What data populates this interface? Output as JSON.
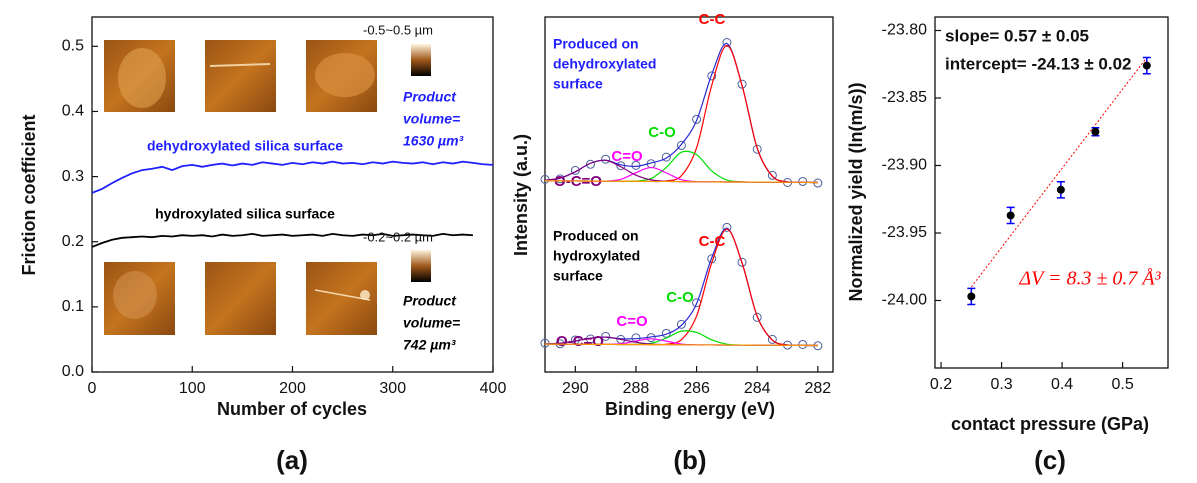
{
  "chart_data": [
    {
      "type": "line",
      "panel_label": "(a)",
      "xlabel": "Number of cycles",
      "ylabel": "Friction coefficient",
      "xlim": [
        0,
        400
      ],
      "ylim": [
        0,
        0.545
      ],
      "xticks": [
        0,
        100,
        200,
        300,
        400
      ],
      "yticks": [
        {
          "value": 0,
          "label": "0.0"
        },
        0.1,
        0.2,
        0.3,
        0.4,
        0.5
      ],
      "series": [
        {
          "name": "dehydroxylated silica surface",
          "color": "#1f1fff",
          "x": [
            0,
            10,
            20,
            30,
            40,
            50,
            60,
            70,
            80,
            90,
            100,
            110,
            120,
            130,
            140,
            150,
            160,
            170,
            180,
            190,
            200,
            210,
            220,
            230,
            240,
            250,
            260,
            270,
            280,
            290,
            300,
            310,
            320,
            330,
            340,
            350,
            360,
            370,
            380,
            390,
            400
          ],
          "values": [
            0.275,
            0.281,
            0.29,
            0.298,
            0.305,
            0.31,
            0.312,
            0.315,
            0.31,
            0.316,
            0.318,
            0.315,
            0.318,
            0.32,
            0.317,
            0.32,
            0.318,
            0.322,
            0.32,
            0.318,
            0.321,
            0.319,
            0.322,
            0.32,
            0.323,
            0.32,
            0.321,
            0.319,
            0.322,
            0.32,
            0.323,
            0.321,
            0.32,
            0.322,
            0.319,
            0.322,
            0.32,
            0.323,
            0.321,
            0.319,
            0.318
          ]
        },
        {
          "name": "hydroxylated silica surface",
          "color": "#000000",
          "x": [
            0,
            10,
            20,
            30,
            40,
            50,
            60,
            70,
            80,
            90,
            100,
            110,
            120,
            130,
            140,
            150,
            160,
            170,
            180,
            190,
            200,
            210,
            220,
            230,
            240,
            250,
            260,
            270,
            280,
            290,
            300,
            310,
            320,
            330,
            340,
            350,
            360,
            370,
            380
          ],
          "values": [
            0.192,
            0.198,
            0.203,
            0.206,
            0.207,
            0.208,
            0.207,
            0.209,
            0.208,
            0.21,
            0.209,
            0.21,
            0.208,
            0.211,
            0.209,
            0.21,
            0.212,
            0.209,
            0.21,
            0.211,
            0.209,
            0.21,
            0.211,
            0.209,
            0.212,
            0.21,
            0.209,
            0.211,
            0.21,
            0.212,
            0.209,
            0.21,
            0.211,
            0.21,
            0.209,
            0.212,
            0.21,
            0.211,
            0.21
          ]
        }
      ],
      "annotations": {
        "scale_top": "-0.5~0.5 µm",
        "volume_top": [
          "Product",
          "volume=",
          "1630 µm³"
        ],
        "scale_bottom": "-0.2~0.2 µm",
        "volume_bottom": [
          "Product",
          "volume=",
          "742 µm³"
        ]
      }
    },
    {
      "type": "line",
      "ylabel": "Intensity (a.u.)",
      "xlim": [
        291,
        281.5
      ],
      "ylim": [
        0,
        100
      ],
      "annotation": [
        "Produced on",
        "dehydroxylated",
        "surface"
      ],
      "annotation_color": "#1f1fff",
      "x": [
        291,
        290.5,
        290,
        289.5,
        289,
        288.5,
        288,
        287.5,
        287,
        286.5,
        286,
        285.5,
        285,
        284.5,
        284,
        283.5,
        283,
        282.5,
        282
      ],
      "series": [
        {
          "color": "#4a5f9a",
          "marker": "circle",
          "values": [
            11.8,
            12.1,
            16.9,
            20.4,
            23.3,
            19.6,
            19.8,
            20.7,
            24.5,
            31.2,
            46.1,
            70.9,
            90.0,
            66.2,
            29.0,
            14.1,
            10.0,
            10.6,
            9.7
          ]
        },
        {
          "color": "#2b2bd0",
          "values": [
            11.3,
            12.5,
            16.1,
            21.0,
            22.7,
            20.1,
            19.2,
            21.2,
            23.9,
            31.8,
            45.4,
            71.7,
            89.4,
            65.5,
            29.6,
            13.6,
            10.4,
            10.1,
            10
          ]
        },
        {
          "name": "C-C",
          "color": "#ff0000",
          "values": [
            11,
            10.9,
            10.9,
            10.8,
            10.8,
            10.7,
            10.7,
            10.6,
            10.9,
            13.9,
            29.8,
            65.5,
            88.3,
            65.4,
            29.6,
            13.6,
            10.4,
            10.1,
            10
          ]
        },
        {
          "name": "C-O",
          "color": "#00dd00",
          "values": [
            11,
            10.9,
            10.9,
            10.8,
            10.8,
            10.7,
            10.8,
            12.3,
            18.6,
            27.3,
            25.9,
            16.6,
            11.4,
            10.4,
            10.2,
            10.2,
            10.1,
            10.1,
            10
          ]
        },
        {
          "name": "C=O",
          "color": "#ff00ff",
          "values": [
            11,
            10.9,
            10.9,
            10.8,
            10.8,
            11.8,
            15.6,
            18.6,
            15.5,
            11.6,
            10.5,
            10.4,
            10.3,
            10.3,
            10.2,
            10.2,
            10.1,
            10.1,
            10
          ]
        },
        {
          "name": "O-C=O",
          "color": "#800080",
          "values": [
            11.3,
            12.5,
            16.1,
            21.0,
            22.7,
            19.0,
            14.2,
            11.5,
            10.7,
            10.5,
            10.4,
            10.4,
            10.3,
            10.3,
            10.2,
            10.2,
            10.1,
            10.1,
            10
          ]
        },
        {
          "color": "#ff9900",
          "values": [
            11,
            10.9,
            10.9,
            10.8,
            10.8,
            10.7,
            10.7,
            10.6,
            10.6,
            10.5,
            10.4,
            10.4,
            10.3,
            10.3,
            10.2,
            10.2,
            10.1,
            10.1,
            10
          ]
        }
      ]
    },
    {
      "type": "line",
      "panel_label": "(b)",
      "xlabel": "Binding energy (eV)",
      "xlim": [
        291,
        281.5
      ],
      "ylim": [
        0,
        100
      ],
      "xticks": [
        290,
        288,
        286,
        284,
        282
      ],
      "annotation": [
        "Produced on",
        "hydroxylated",
        "surface"
      ],
      "annotation_color": "#000000",
      "x": [
        291,
        290.5,
        290,
        289.5,
        289,
        288.5,
        288,
        287.5,
        287,
        286.5,
        286,
        285.5,
        285,
        284.5,
        284,
        283.5,
        283,
        282.5,
        282
      ],
      "series": [
        {
          "color": "#4a5f9a",
          "marker": "circle",
          "values": [
            11.6,
            11.2,
            13.8,
            14.5,
            16.3,
            14.2,
            15.3,
            15.4,
            18.4,
            24.6,
            39.5,
            69.8,
            91.5,
            67.4,
            29.4,
            14.2,
            10.3,
            10.7,
            9.8
          ]
        },
        {
          "color": "#2b2bd0",
          "values": [
            11.1,
            11.6,
            13.1,
            15.0,
            15.8,
            14.7,
            14.7,
            15.9,
            17.8,
            23.9,
            38.9,
            70.5,
            90.9,
            66.9,
            30.1,
            13.7,
            10.4,
            10.1,
            10
          ]
        },
        {
          "name": "C-C",
          "color": "#ff0000",
          "values": [
            11,
            10.9,
            10.9,
            10.8,
            10.8,
            10.7,
            10.7,
            10.6,
            10.9,
            14.0,
            30.3,
            67.0,
            90.3,
            66.9,
            30.1,
            13.7,
            10.4,
            10.1,
            10
          ]
        },
        {
          "name": "C-O",
          "color": "#00dd00",
          "values": [
            11,
            10.9,
            10.9,
            10.8,
            10.8,
            10.7,
            10.8,
            11.5,
            15.1,
            19.9,
            19.0,
            13.9,
            10.9,
            10.3,
            10.2,
            10.2,
            10.1,
            10.1,
            10
          ]
        },
        {
          "name": "C=O",
          "color": "#ff00ff",
          "values": [
            11,
            10.9,
            10.9,
            10.8,
            10.8,
            11.2,
            13.1,
            14.6,
            13.0,
            11.0,
            10.4,
            10.4,
            10.3,
            10.3,
            10.2,
            10.2,
            10.1,
            10.1,
            10
          ]
        },
        {
          "name": "O-C=O",
          "color": "#800080",
          "values": [
            11.1,
            11.6,
            13.1,
            15.0,
            15.8,
            14.2,
            12.2,
            11.0,
            10.6,
            10.5,
            10.4,
            10.4,
            10.3,
            10.3,
            10.2,
            10.2,
            10.1,
            10.1,
            10
          ]
        },
        {
          "color": "#ff9900",
          "values": [
            11,
            10.9,
            10.9,
            10.8,
            10.8,
            10.7,
            10.7,
            10.6,
            10.6,
            10.5,
            10.4,
            10.4,
            10.3,
            10.3,
            10.2,
            10.2,
            10.1,
            10.1,
            10
          ]
        }
      ]
    },
    {
      "type": "scatter",
      "panel_label": "(c)",
      "xlabel": "contact pressure (GPa)",
      "ylabel": "Normalized yield (ln(m/s))",
      "xlim": [
        0.19,
        0.575
      ],
      "ylim": [
        -24.05,
        -23.79
      ],
      "xticks": [
        0.2,
        0.3,
        0.4,
        0.5
      ],
      "yticks": [
        {
          "value": -23.8,
          "label": "-23.80"
        },
        -23.85,
        {
          "value": -23.9,
          "label": "-23.90"
        },
        -23.95,
        {
          "value": -24,
          "label": "-24.00"
        }
      ],
      "x": [
        0.25,
        0.315,
        0.398,
        0.455,
        0.54
      ],
      "values": [
        -23.997,
        -23.937,
        -23.918,
        -23.875,
        -23.826
      ],
      "errors": [
        0.006,
        0.006,
        0.006,
        0.003,
        0.006
      ],
      "color": "#000000",
      "error_color": "#0000ff",
      "fit": {
        "color": "#ff0000",
        "x": [
          0.25,
          0.54
        ],
        "values": [
          -23.99,
          -23.82
        ]
      },
      "annotations": [
        "slope= 0.57 ± 0.05",
        "intercept= -24.13 ± 0.02",
        "ΔV = 8.3 ± 0.7 Å³"
      ]
    }
  ]
}
